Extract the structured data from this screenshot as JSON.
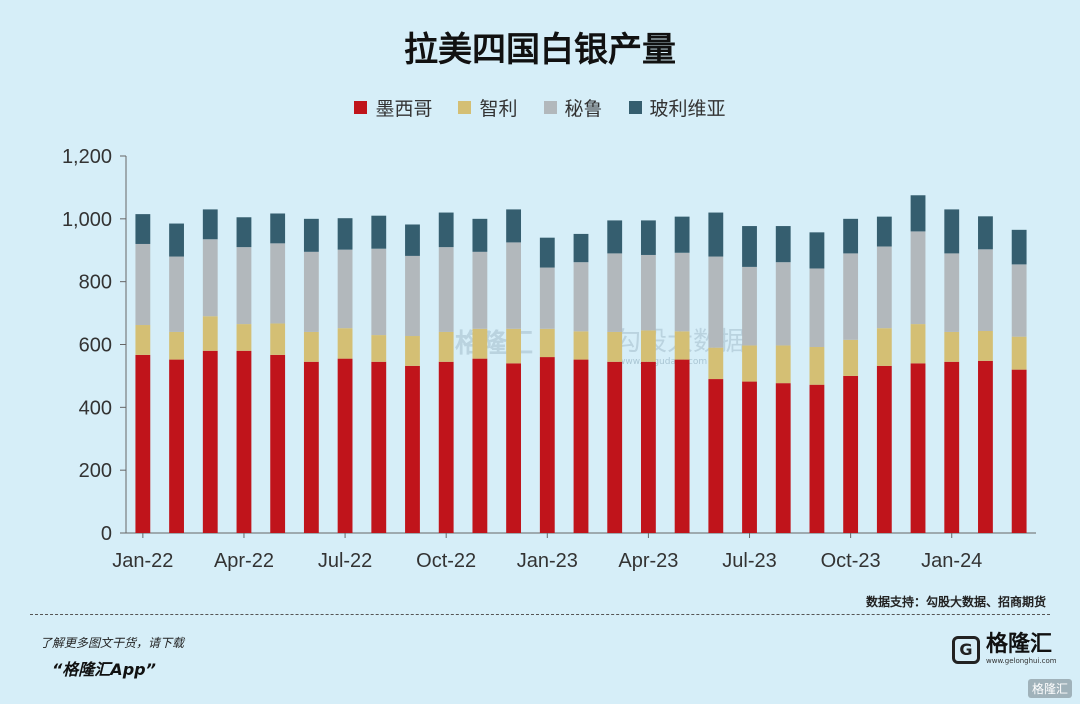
{
  "title": "拉美四国白银产量",
  "colors": {
    "background": "#d6eef8",
    "mexico": "#c0141b",
    "chile": "#d4bf74",
    "peru": "#b2b8bc",
    "bolivia": "#355e6f"
  },
  "source": "数据支持：勾股大数据、招商期货",
  "footer": {
    "hint": "了解更多图文干货，请下载",
    "app": "“格隆汇App”",
    "logo_name": "格隆汇",
    "logo_url": "www.gelonghui.com",
    "corner": "格隆汇"
  },
  "watermark": {
    "brand": "格隆汇",
    "data_brand": "勾股大数据",
    "url": "www.gogudata.com"
  },
  "chart_data": {
    "type": "bar",
    "stacked": true,
    "title": "拉美四国白银产量",
    "xlabel": "",
    "ylabel": "",
    "ylim": [
      0,
      1200
    ],
    "yticks": [
      "0",
      "200",
      "400",
      "600",
      "800",
      "1,000",
      "1,200"
    ],
    "grid": false,
    "legend_position": "top",
    "x_tick_labels": [
      {
        "index": 0,
        "label": "Jan-22"
      },
      {
        "index": 3,
        "label": "Apr-22"
      },
      {
        "index": 6,
        "label": "Jul-22"
      },
      {
        "index": 9,
        "label": "Oct-22"
      },
      {
        "index": 12,
        "label": "Jan-23"
      },
      {
        "index": 15,
        "label": "Apr-23"
      },
      {
        "index": 18,
        "label": "Jul-23"
      },
      {
        "index": 21,
        "label": "Oct-23"
      },
      {
        "index": 24,
        "label": "Jan-24"
      }
    ],
    "categories": [
      "2022-01",
      "2022-02",
      "2022-03",
      "2022-04",
      "2022-05",
      "2022-06",
      "2022-07",
      "2022-08",
      "2022-09",
      "2022-10",
      "2022-11",
      "2022-12",
      "2023-01",
      "2023-02",
      "2023-03",
      "2023-04",
      "2023-05",
      "2023-06",
      "2023-07",
      "2023-08",
      "2023-09",
      "2023-10",
      "2023-11",
      "2023-12",
      "2024-01",
      "2024-02",
      "2024-03"
    ],
    "series": [
      {
        "name": "墨西哥",
        "color_key": "mexico",
        "values": [
          567,
          552,
          580,
          580,
          567,
          545,
          555,
          545,
          532,
          545,
          555,
          540,
          560,
          552,
          545,
          545,
          552,
          490,
          482,
          477,
          472,
          500,
          532,
          540,
          545,
          548,
          520
        ]
      },
      {
        "name": "智利",
        "color_key": "chile",
        "values": [
          95,
          88,
          110,
          85,
          100,
          95,
          97,
          85,
          95,
          95,
          95,
          110,
          90,
          90,
          95,
          100,
          90,
          100,
          115,
          120,
          120,
          115,
          120,
          125,
          95,
          95,
          105
        ]
      },
      {
        "name": "秘鲁",
        "color_key": "peru",
        "values": [
          258,
          240,
          245,
          245,
          255,
          255,
          250,
          275,
          255,
          270,
          245,
          275,
          195,
          220,
          250,
          240,
          250,
          290,
          250,
          265,
          250,
          275,
          260,
          295,
          250,
          260,
          230
        ]
      },
      {
        "name": "玻利维亚",
        "color_key": "bolivia",
        "values": [
          95,
          105,
          95,
          95,
          95,
          105,
          100,
          105,
          100,
          110,
          105,
          105,
          95,
          90,
          105,
          110,
          115,
          140,
          130,
          115,
          115,
          110,
          95,
          115,
          140,
          105,
          110
        ]
      }
    ]
  }
}
